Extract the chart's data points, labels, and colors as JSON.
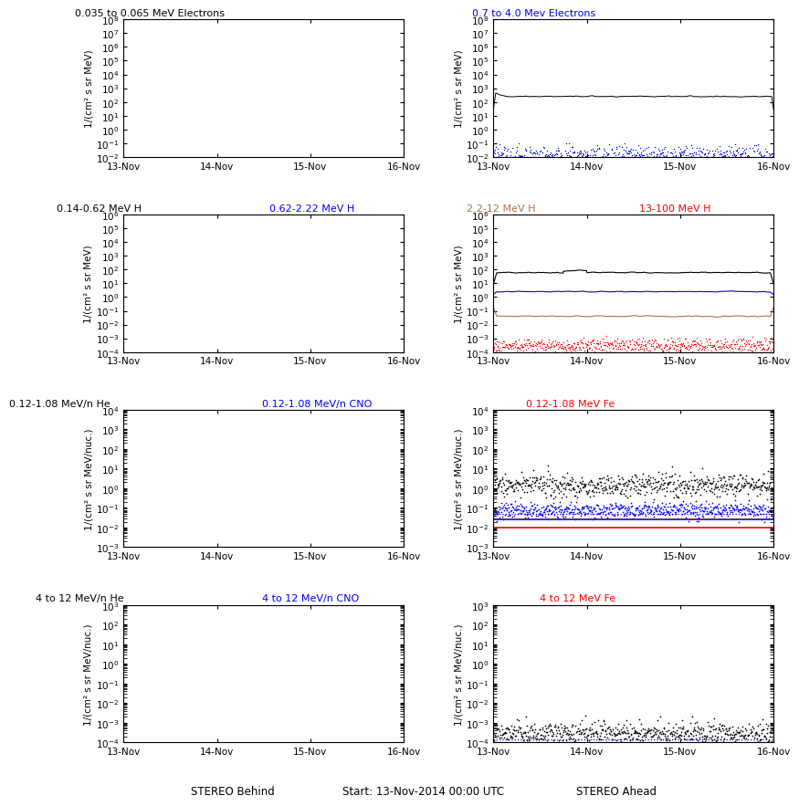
{
  "title_center": "Start: 13-Nov-2014 00:00 UTC",
  "stereo_behind": "STEREO Behind",
  "stereo_ahead": "STEREO Ahead",
  "x_tick_labels": [
    "13-Nov",
    "14-Nov",
    "15-Nov",
    "16-Nov"
  ],
  "row0_titles": [
    [
      [
        "0.035 to 0.065 MeV Electrons",
        "black"
      ],
      [
        "0.7 to 4.0 Mev Electrons",
        "blue"
      ]
    ]
  ],
  "row1_titles": [
    [
      [
        "0.14-0.62 MeV H",
        "black"
      ],
      [
        "0.62-2.22 MeV H",
        "blue"
      ],
      [
        "2.2-12 MeV H",
        "#b07050"
      ],
      [
        "13-100 MeV H",
        "red"
      ]
    ]
  ],
  "row2_titles": [
    [
      [
        "0.12-1.08 MeV/n He",
        "black"
      ],
      [
        "0.12-1.08 MeV/n CNO",
        "blue"
      ],
      [
        "0.12-1.08 MeV Fe",
        "red"
      ]
    ]
  ],
  "row3_titles": [
    [
      [
        "4 to 12 MeV/n He",
        "black"
      ],
      [
        "4 to 12 MeV/n CNO",
        "blue"
      ],
      [
        "4 to 12 MeV Fe",
        "red"
      ]
    ]
  ],
  "ylabels_mev": "1/(cm² s sr MeV)",
  "ylabels_nuc": "1/(cm² s sr MeV/nuc.)",
  "ylim_row0": [
    0.01,
    100000000.0
  ],
  "ylim_row1": [
    0.0001,
    1000000.0
  ],
  "ylim_row2": [
    0.001,
    10000.0
  ],
  "ylim_row3": [
    0.0001,
    1000.0
  ],
  "n_points": 600
}
